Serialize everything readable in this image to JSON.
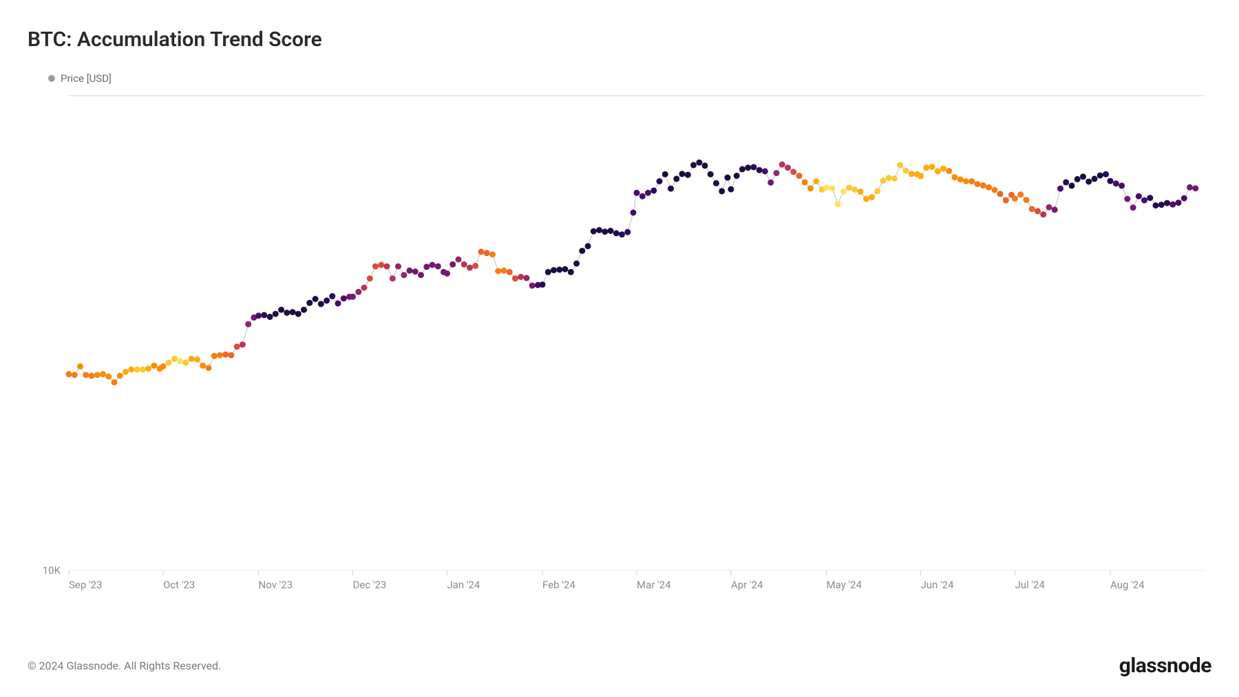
{
  "title": "BTC: Accumulation Trend Score",
  "legend": {
    "label": "Price [USD]",
    "dot_color": "#9a9a9a"
  },
  "copyright": "© 2024 Glassnode. All Rights Reserved.",
  "brand": "glassnode",
  "chart": {
    "type": "scatter-line",
    "background_color": "#ffffff",
    "title_fontsize": 30,
    "label_fontsize": 15,
    "line_color": "#bfbfbf",
    "line_width": 1,
    "marker_radius": 4.5,
    "grid_color": "#e8e8e8",
    "axis_color": "#d0d0d0",
    "tick_color": "#8a8a8a",
    "y_axis": {
      "scale": "log",
      "min": 10000,
      "max": 100000,
      "ticks": [
        {
          "value": 10000,
          "label": "10K"
        }
      ]
    },
    "x_axis": {
      "ticks": [
        {
          "pos": 0.0,
          "label": "Sep '23"
        },
        {
          "pos": 0.083,
          "label": "Oct '23"
        },
        {
          "pos": 0.167,
          "label": "Nov '23"
        },
        {
          "pos": 0.25,
          "label": "Dec '23"
        },
        {
          "pos": 0.333,
          "label": "Jan '24"
        },
        {
          "pos": 0.417,
          "label": "Feb '24"
        },
        {
          "pos": 0.5,
          "label": "Mar '24"
        },
        {
          "pos": 0.583,
          "label": "Apr '24"
        },
        {
          "pos": 0.667,
          "label": "May '24"
        },
        {
          "pos": 0.75,
          "label": "Jun '24"
        },
        {
          "pos": 0.833,
          "label": "Jul '24"
        },
        {
          "pos": 0.917,
          "label": "Aug '24"
        }
      ]
    },
    "color_scale_comment": "Point color encodes Accumulation Trend Score (0=yellow/distribution, 1=dark purple/accumulation), inferno-like reversed palette.",
    "series": [
      {
        "x": 0.0,
        "y": 25900,
        "c": "#f57d15"
      },
      {
        "x": 0.005,
        "y": 25800,
        "c": "#f57d15"
      },
      {
        "x": 0.01,
        "y": 26900,
        "c": "#f98c0a"
      },
      {
        "x": 0.015,
        "y": 25800,
        "c": "#f57d15"
      },
      {
        "x": 0.02,
        "y": 25700,
        "c": "#f57d15"
      },
      {
        "x": 0.025,
        "y": 25800,
        "c": "#f98c0a"
      },
      {
        "x": 0.03,
        "y": 25900,
        "c": "#f98c0a"
      },
      {
        "x": 0.035,
        "y": 25600,
        "c": "#f98c0a"
      },
      {
        "x": 0.04,
        "y": 24900,
        "c": "#f57d15"
      },
      {
        "x": 0.045,
        "y": 25700,
        "c": "#f98c0a"
      },
      {
        "x": 0.05,
        "y": 26200,
        "c": "#fcac11"
      },
      {
        "x": 0.055,
        "y": 26500,
        "c": "#fcac11"
      },
      {
        "x": 0.06,
        "y": 26500,
        "c": "#f9cb35"
      },
      {
        "x": 0.065,
        "y": 26500,
        "c": "#f9cb35"
      },
      {
        "x": 0.07,
        "y": 26600,
        "c": "#fcac11"
      },
      {
        "x": 0.075,
        "y": 27000,
        "c": "#f98c0a"
      },
      {
        "x": 0.08,
        "y": 26600,
        "c": "#f98c0a"
      },
      {
        "x": 0.083,
        "y": 26900,
        "c": "#f98c0a"
      },
      {
        "x": 0.088,
        "y": 27400,
        "c": "#f9cb35"
      },
      {
        "x": 0.093,
        "y": 27900,
        "c": "#f9cb35"
      },
      {
        "x": 0.098,
        "y": 27600,
        "c": "#fce25c"
      },
      {
        "x": 0.103,
        "y": 27400,
        "c": "#f9cb35"
      },
      {
        "x": 0.108,
        "y": 27900,
        "c": "#fcac11"
      },
      {
        "x": 0.113,
        "y": 27800,
        "c": "#fcac11"
      },
      {
        "x": 0.118,
        "y": 27000,
        "c": "#f98c0a"
      },
      {
        "x": 0.123,
        "y": 26700,
        "c": "#f57d15"
      },
      {
        "x": 0.128,
        "y": 28300,
        "c": "#f57d15"
      },
      {
        "x": 0.133,
        "y": 28400,
        "c": "#f57d15"
      },
      {
        "x": 0.138,
        "y": 28500,
        "c": "#eb6628"
      },
      {
        "x": 0.143,
        "y": 28400,
        "c": "#eb6628"
      },
      {
        "x": 0.148,
        "y": 29600,
        "c": "#da4a3f"
      },
      {
        "x": 0.153,
        "y": 29900,
        "c": "#b93556"
      },
      {
        "x": 0.158,
        "y": 33000,
        "c": "#932667"
      },
      {
        "x": 0.163,
        "y": 34100,
        "c": "#721a6e"
      },
      {
        "x": 0.167,
        "y": 34400,
        "c": "#4a0c6b"
      },
      {
        "x": 0.172,
        "y": 34500,
        "c": "#280b54"
      },
      {
        "x": 0.177,
        "y": 34200,
        "c": "#1b0c42"
      },
      {
        "x": 0.182,
        "y": 34700,
        "c": "#1b0c42"
      },
      {
        "x": 0.187,
        "y": 35400,
        "c": "#1b0c42"
      },
      {
        "x": 0.192,
        "y": 34900,
        "c": "#1b0c42"
      },
      {
        "x": 0.197,
        "y": 35000,
        "c": "#1b0c42"
      },
      {
        "x": 0.202,
        "y": 34700,
        "c": "#1b0c42"
      },
      {
        "x": 0.207,
        "y": 35400,
        "c": "#1b0c42"
      },
      {
        "x": 0.212,
        "y": 36600,
        "c": "#1b0c42"
      },
      {
        "x": 0.217,
        "y": 37300,
        "c": "#1b0c42"
      },
      {
        "x": 0.222,
        "y": 36400,
        "c": "#1b0c42"
      },
      {
        "x": 0.227,
        "y": 37000,
        "c": "#280b54"
      },
      {
        "x": 0.232,
        "y": 37800,
        "c": "#280b54"
      },
      {
        "x": 0.237,
        "y": 36500,
        "c": "#4a0c6b"
      },
      {
        "x": 0.242,
        "y": 37400,
        "c": "#4a0c6b"
      },
      {
        "x": 0.247,
        "y": 37700,
        "c": "#721a6e"
      },
      {
        "x": 0.25,
        "y": 37700,
        "c": "#721a6e"
      },
      {
        "x": 0.255,
        "y": 38600,
        "c": "#932667"
      },
      {
        "x": 0.26,
        "y": 39400,
        "c": "#b93556"
      },
      {
        "x": 0.265,
        "y": 41200,
        "c": "#da4a3f"
      },
      {
        "x": 0.27,
        "y": 43700,
        "c": "#da4a3f"
      },
      {
        "x": 0.275,
        "y": 44000,
        "c": "#da4a3f"
      },
      {
        "x": 0.28,
        "y": 43700,
        "c": "#b93556"
      },
      {
        "x": 0.285,
        "y": 41200,
        "c": "#b93556"
      },
      {
        "x": 0.29,
        "y": 43700,
        "c": "#932667"
      },
      {
        "x": 0.295,
        "y": 41900,
        "c": "#932667"
      },
      {
        "x": 0.3,
        "y": 42800,
        "c": "#721a6e"
      },
      {
        "x": 0.305,
        "y": 42600,
        "c": "#721a6e"
      },
      {
        "x": 0.31,
        "y": 41900,
        "c": "#721a6e"
      },
      {
        "x": 0.315,
        "y": 43600,
        "c": "#721a6e"
      },
      {
        "x": 0.32,
        "y": 44000,
        "c": "#721a6e"
      },
      {
        "x": 0.325,
        "y": 43700,
        "c": "#721a6e"
      },
      {
        "x": 0.33,
        "y": 42500,
        "c": "#721a6e"
      },
      {
        "x": 0.333,
        "y": 42200,
        "c": "#721a6e"
      },
      {
        "x": 0.338,
        "y": 44100,
        "c": "#721a6e"
      },
      {
        "x": 0.343,
        "y": 45200,
        "c": "#932667"
      },
      {
        "x": 0.348,
        "y": 44100,
        "c": "#b93556"
      },
      {
        "x": 0.353,
        "y": 43400,
        "c": "#b93556"
      },
      {
        "x": 0.358,
        "y": 43800,
        "c": "#da4a3f"
      },
      {
        "x": 0.363,
        "y": 46900,
        "c": "#eb6628"
      },
      {
        "x": 0.368,
        "y": 46600,
        "c": "#eb6628"
      },
      {
        "x": 0.373,
        "y": 46300,
        "c": "#f57d15"
      },
      {
        "x": 0.378,
        "y": 42700,
        "c": "#f57d15"
      },
      {
        "x": 0.383,
        "y": 42800,
        "c": "#f57d15"
      },
      {
        "x": 0.388,
        "y": 42500,
        "c": "#eb6628"
      },
      {
        "x": 0.393,
        "y": 41200,
        "c": "#da4a3f"
      },
      {
        "x": 0.398,
        "y": 41500,
        "c": "#b93556"
      },
      {
        "x": 0.403,
        "y": 41300,
        "c": "#932667"
      },
      {
        "x": 0.408,
        "y": 39800,
        "c": "#721a6e"
      },
      {
        "x": 0.413,
        "y": 39900,
        "c": "#4a0c6b"
      },
      {
        "x": 0.417,
        "y": 40000,
        "c": "#280b54"
      },
      {
        "x": 0.422,
        "y": 42500,
        "c": "#1b0c42"
      },
      {
        "x": 0.427,
        "y": 42900,
        "c": "#1b0c42"
      },
      {
        "x": 0.432,
        "y": 43000,
        "c": "#1b0c42"
      },
      {
        "x": 0.437,
        "y": 43100,
        "c": "#1b0c42"
      },
      {
        "x": 0.442,
        "y": 42500,
        "c": "#1b0c42"
      },
      {
        "x": 0.447,
        "y": 44300,
        "c": "#1b0c42"
      },
      {
        "x": 0.452,
        "y": 47100,
        "c": "#1b0c42"
      },
      {
        "x": 0.457,
        "y": 48200,
        "c": "#1b0c42"
      },
      {
        "x": 0.462,
        "y": 51800,
        "c": "#1b0c42"
      },
      {
        "x": 0.467,
        "y": 52100,
        "c": "#1b0c42"
      },
      {
        "x": 0.472,
        "y": 51700,
        "c": "#1b0c42"
      },
      {
        "x": 0.477,
        "y": 51900,
        "c": "#1b0c42"
      },
      {
        "x": 0.482,
        "y": 51300,
        "c": "#1b0c42"
      },
      {
        "x": 0.487,
        "y": 51000,
        "c": "#280b54"
      },
      {
        "x": 0.492,
        "y": 51600,
        "c": "#280b54"
      },
      {
        "x": 0.497,
        "y": 56700,
        "c": "#4a0c6b"
      },
      {
        "x": 0.5,
        "y": 62400,
        "c": "#4a0c6b"
      },
      {
        "x": 0.505,
        "y": 61400,
        "c": "#4a0c6b"
      },
      {
        "x": 0.51,
        "y": 62400,
        "c": "#4a0c6b"
      },
      {
        "x": 0.515,
        "y": 63100,
        "c": "#280b54"
      },
      {
        "x": 0.52,
        "y": 66000,
        "c": "#280b54"
      },
      {
        "x": 0.525,
        "y": 68300,
        "c": "#1b0c42"
      },
      {
        "x": 0.53,
        "y": 63700,
        "c": "#1b0c42"
      },
      {
        "x": 0.535,
        "y": 66800,
        "c": "#1b0c42"
      },
      {
        "x": 0.54,
        "y": 68400,
        "c": "#1b0c42"
      },
      {
        "x": 0.545,
        "y": 68100,
        "c": "#1b0c42"
      },
      {
        "x": 0.55,
        "y": 71400,
        "c": "#1b0c42"
      },
      {
        "x": 0.555,
        "y": 72300,
        "c": "#1b0c42"
      },
      {
        "x": 0.56,
        "y": 71200,
        "c": "#1b0c42"
      },
      {
        "x": 0.565,
        "y": 68300,
        "c": "#1b0c42"
      },
      {
        "x": 0.57,
        "y": 65400,
        "c": "#1b0c42"
      },
      {
        "x": 0.575,
        "y": 62900,
        "c": "#1b0c42"
      },
      {
        "x": 0.58,
        "y": 67200,
        "c": "#1b0c42"
      },
      {
        "x": 0.583,
        "y": 63500,
        "c": "#1b0c42"
      },
      {
        "x": 0.588,
        "y": 67800,
        "c": "#1b0c42"
      },
      {
        "x": 0.593,
        "y": 70000,
        "c": "#1b0c42"
      },
      {
        "x": 0.598,
        "y": 70500,
        "c": "#1b0c42"
      },
      {
        "x": 0.603,
        "y": 70700,
        "c": "#280b54"
      },
      {
        "x": 0.608,
        "y": 69700,
        "c": "#280b54"
      },
      {
        "x": 0.613,
        "y": 69300,
        "c": "#4a0c6b"
      },
      {
        "x": 0.618,
        "y": 65600,
        "c": "#721a6e"
      },
      {
        "x": 0.623,
        "y": 68700,
        "c": "#932667"
      },
      {
        "x": 0.628,
        "y": 71600,
        "c": "#b93556"
      },
      {
        "x": 0.633,
        "y": 70500,
        "c": "#b93556"
      },
      {
        "x": 0.638,
        "y": 69100,
        "c": "#da4a3f"
      },
      {
        "x": 0.643,
        "y": 67800,
        "c": "#eb6628"
      },
      {
        "x": 0.648,
        "y": 65700,
        "c": "#f57d15"
      },
      {
        "x": 0.653,
        "y": 63800,
        "c": "#f98c0a"
      },
      {
        "x": 0.658,
        "y": 66000,
        "c": "#fcac11"
      },
      {
        "x": 0.663,
        "y": 63400,
        "c": "#f9cb35"
      },
      {
        "x": 0.667,
        "y": 64000,
        "c": "#fce25c"
      },
      {
        "x": 0.672,
        "y": 63800,
        "c": "#fce25c"
      },
      {
        "x": 0.677,
        "y": 59100,
        "c": "#fce25c"
      },
      {
        "x": 0.682,
        "y": 62800,
        "c": "#fce25c"
      },
      {
        "x": 0.687,
        "y": 64000,
        "c": "#f9cb35"
      },
      {
        "x": 0.692,
        "y": 63400,
        "c": "#f9cb35"
      },
      {
        "x": 0.697,
        "y": 62800,
        "c": "#fcac11"
      },
      {
        "x": 0.702,
        "y": 60600,
        "c": "#fcac11"
      },
      {
        "x": 0.707,
        "y": 61100,
        "c": "#fcac11"
      },
      {
        "x": 0.712,
        "y": 62900,
        "c": "#f9cb35"
      },
      {
        "x": 0.717,
        "y": 66200,
        "c": "#f9cb35"
      },
      {
        "x": 0.722,
        "y": 67100,
        "c": "#f9cb35"
      },
      {
        "x": 0.727,
        "y": 66900,
        "c": "#f9cb35"
      },
      {
        "x": 0.732,
        "y": 71400,
        "c": "#f9cb35"
      },
      {
        "x": 0.737,
        "y": 69500,
        "c": "#f9cb35"
      },
      {
        "x": 0.742,
        "y": 68400,
        "c": "#fcac11"
      },
      {
        "x": 0.747,
        "y": 68300,
        "c": "#fcac11"
      },
      {
        "x": 0.75,
        "y": 67700,
        "c": "#fcac11"
      },
      {
        "x": 0.755,
        "y": 70500,
        "c": "#fcac11"
      },
      {
        "x": 0.76,
        "y": 70800,
        "c": "#fcac11"
      },
      {
        "x": 0.765,
        "y": 69300,
        "c": "#fcac11"
      },
      {
        "x": 0.77,
        "y": 70200,
        "c": "#fcac11"
      },
      {
        "x": 0.775,
        "y": 69400,
        "c": "#f98c0a"
      },
      {
        "x": 0.78,
        "y": 67300,
        "c": "#f98c0a"
      },
      {
        "x": 0.785,
        "y": 66600,
        "c": "#f98c0a"
      },
      {
        "x": 0.79,
        "y": 66000,
        "c": "#f98c0a"
      },
      {
        "x": 0.795,
        "y": 66000,
        "c": "#f57d15"
      },
      {
        "x": 0.8,
        "y": 65100,
        "c": "#f57d15"
      },
      {
        "x": 0.805,
        "y": 64700,
        "c": "#f57d15"
      },
      {
        "x": 0.81,
        "y": 64100,
        "c": "#f57d15"
      },
      {
        "x": 0.815,
        "y": 63300,
        "c": "#f57d15"
      },
      {
        "x": 0.82,
        "y": 62100,
        "c": "#eb6628"
      },
      {
        "x": 0.825,
        "y": 60200,
        "c": "#eb6628"
      },
      {
        "x": 0.83,
        "y": 61800,
        "c": "#eb6628"
      },
      {
        "x": 0.833,
        "y": 60700,
        "c": "#f57d15"
      },
      {
        "x": 0.838,
        "y": 61900,
        "c": "#f57d15"
      },
      {
        "x": 0.843,
        "y": 60300,
        "c": "#f57d15"
      },
      {
        "x": 0.848,
        "y": 57700,
        "c": "#eb6628"
      },
      {
        "x": 0.853,
        "y": 57100,
        "c": "#da4a3f"
      },
      {
        "x": 0.858,
        "y": 56200,
        "c": "#b93556"
      },
      {
        "x": 0.863,
        "y": 58200,
        "c": "#932667"
      },
      {
        "x": 0.868,
        "y": 57500,
        "c": "#721a6e"
      },
      {
        "x": 0.873,
        "y": 63700,
        "c": "#4a0c6b"
      },
      {
        "x": 0.878,
        "y": 65700,
        "c": "#280b54"
      },
      {
        "x": 0.883,
        "y": 64600,
        "c": "#1b0c42"
      },
      {
        "x": 0.888,
        "y": 66700,
        "c": "#1b0c42"
      },
      {
        "x": 0.893,
        "y": 67500,
        "c": "#1b0c42"
      },
      {
        "x": 0.898,
        "y": 65900,
        "c": "#1b0c42"
      },
      {
        "x": 0.903,
        "y": 66800,
        "c": "#1b0c42"
      },
      {
        "x": 0.908,
        "y": 67900,
        "c": "#1b0c42"
      },
      {
        "x": 0.913,
        "y": 68300,
        "c": "#280b54"
      },
      {
        "x": 0.917,
        "y": 66100,
        "c": "#280b54"
      },
      {
        "x": 0.922,
        "y": 65300,
        "c": "#4a0c6b"
      },
      {
        "x": 0.927,
        "y": 64600,
        "c": "#4a0c6b"
      },
      {
        "x": 0.932,
        "y": 60600,
        "c": "#721a6e"
      },
      {
        "x": 0.937,
        "y": 58100,
        "c": "#721a6e"
      },
      {
        "x": 0.942,
        "y": 61400,
        "c": "#4a0c6b"
      },
      {
        "x": 0.947,
        "y": 60200,
        "c": "#4a0c6b"
      },
      {
        "x": 0.952,
        "y": 60900,
        "c": "#280b54"
      },
      {
        "x": 0.957,
        "y": 58700,
        "c": "#280b54"
      },
      {
        "x": 0.962,
        "y": 58900,
        "c": "#280b54"
      },
      {
        "x": 0.967,
        "y": 59400,
        "c": "#280b54"
      },
      {
        "x": 0.972,
        "y": 59000,
        "c": "#4a0c6b"
      },
      {
        "x": 0.977,
        "y": 59500,
        "c": "#4a0c6b"
      },
      {
        "x": 0.982,
        "y": 60800,
        "c": "#4a0c6b"
      },
      {
        "x": 0.987,
        "y": 64100,
        "c": "#721a6e"
      },
      {
        "x": 0.992,
        "y": 63800,
        "c": "#721a6e"
      }
    ]
  }
}
